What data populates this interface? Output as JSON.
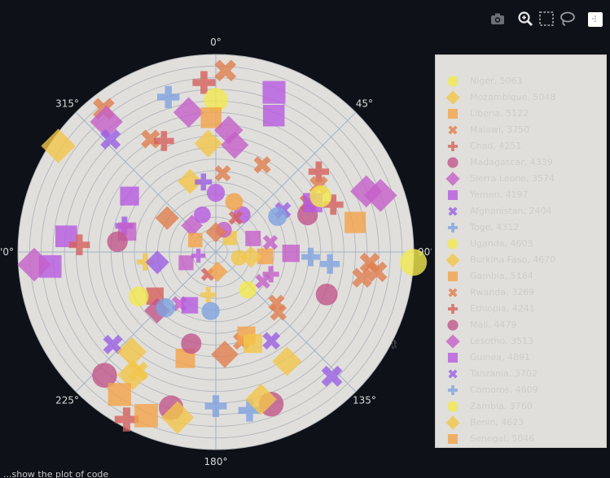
{
  "toolbar": {
    "icons": [
      "camera-icon",
      "zoom-icon",
      "box-select-icon",
      "lasso-icon",
      "autoscale-icon"
    ]
  },
  "chart_data": {
    "type": "scatter",
    "subtype": "polar",
    "theta_ticks": [
      "0°",
      "45°",
      "90°",
      "135°",
      "180°",
      "225°",
      "'0°",
      "315°"
    ],
    "radial_axis_label": "es",
    "radial_gridlines": 17,
    "grid": true,
    "legend_position": "right",
    "legend": [
      {
        "label": "Niger, 5063",
        "symbol": "circle",
        "color": "#f1e94f"
      },
      {
        "label": "Mozambique, 5048",
        "symbol": "diamond",
        "color": "#f3c54a"
      },
      {
        "label": "Liberia, 5122",
        "symbol": "square",
        "color": "#f2a24a"
      },
      {
        "label": "Malawi, 3750",
        "symbol": "x",
        "color": "#e07e4f"
      },
      {
        "label": "Chad, 4251",
        "symbol": "cross",
        "color": "#d5605d"
      },
      {
        "label": "Madagascar, 4339",
        "symbol": "circle",
        "color": "#c0568a"
      },
      {
        "label": "Sierra Leone, 3574",
        "symbol": "diamond",
        "color": "#c45fc9"
      },
      {
        "label": "Yemen, 4197",
        "symbol": "square",
        "color": "#b65ae0"
      },
      {
        "label": "Afghanistan, 2404",
        "symbol": "x",
        "color": "#9a5fe3"
      },
      {
        "label": "Togo, 4312",
        "symbol": "cross",
        "color": "#7fa3e0"
      },
      {
        "label": "Uganda, 4603",
        "symbol": "circle",
        "color": "#f1e94f"
      },
      {
        "label": "Burkina Faso, 4670",
        "symbol": "diamond",
        "color": "#f3c54a"
      },
      {
        "label": "Gambia, 5164",
        "symbol": "square",
        "color": "#f2a24a"
      },
      {
        "label": "Rwanda, 3269",
        "symbol": "x",
        "color": "#e07e4f"
      },
      {
        "label": "Ethiopia, 4241",
        "symbol": "cross",
        "color": "#d5605d"
      },
      {
        "label": "Mali, 4479",
        "symbol": "circle",
        "color": "#c0568a"
      },
      {
        "label": "Lesotho, 3513",
        "symbol": "diamond",
        "color": "#c45fc9"
      },
      {
        "label": "Guinea, 4891",
        "symbol": "square",
        "color": "#b65ae0"
      },
      {
        "label": "Tanzania, 3702",
        "symbol": "x",
        "color": "#9a5fe3"
      },
      {
        "label": "Comoros, 4609",
        "symbol": "cross",
        "color": "#7fa3e0"
      },
      {
        "label": "Zambia, 3760",
        "symbol": "circle",
        "color": "#f1e94f"
      },
      {
        "label": "Benin, 4623",
        "symbol": "diamond",
        "color": "#f3c54a"
      },
      {
        "label": "Senegal, 5046",
        "symbol": "square",
        "color": "#f2a24a"
      }
    ],
    "points": [
      {
        "theta": 3,
        "r": 0.92,
        "symbol": "x",
        "color": "#e07e4f"
      },
      {
        "theta": 356,
        "r": 0.86,
        "symbol": "cross",
        "color": "#d5605d"
      },
      {
        "theta": 343,
        "r": 0.82,
        "symbol": "cross",
        "color": "#7fa3e0"
      },
      {
        "theta": 0,
        "r": 0.77,
        "symbol": "circle",
        "color": "#f1e94f"
      },
      {
        "theta": 349,
        "r": 0.72,
        "symbol": "diamond",
        "color": "#c45fc9"
      },
      {
        "theta": 20,
        "r": 0.86,
        "symbol": "square",
        "color": "#b65ae0"
      },
      {
        "theta": 23,
        "r": 0.75,
        "symbol": "square",
        "color": "#b65ae0"
      },
      {
        "theta": 322,
        "r": 0.92,
        "symbol": "x",
        "color": "#e07e4f"
      },
      {
        "theta": 320,
        "r": 0.86,
        "symbol": "diamond",
        "color": "#c45fc9"
      },
      {
        "theta": 317,
        "r": 0.78,
        "symbol": "x",
        "color": "#9a5fe3"
      },
      {
        "theta": 304,
        "r": 0.96,
        "symbol": "diamond",
        "color": "#f3c54a"
      },
      {
        "theta": 358,
        "r": 0.68,
        "symbol": "square",
        "color": "#f2a24a"
      },
      {
        "theta": 6,
        "r": 0.62,
        "symbol": "diamond",
        "color": "#c45fc9"
      },
      {
        "theta": 356,
        "r": 0.55,
        "symbol": "diamond",
        "color": "#f3c54a"
      },
      {
        "theta": 330,
        "r": 0.66,
        "symbol": "x",
        "color": "#e07e4f"
      },
      {
        "theta": 335,
        "r": 0.62,
        "symbol": "cross",
        "color": "#d5605d"
      },
      {
        "theta": 10,
        "r": 0.55,
        "symbol": "diamond",
        "color": "#c45fc9"
      },
      {
        "theta": 28,
        "r": 0.5,
        "symbol": "x",
        "color": "#e07e4f"
      },
      {
        "theta": 52,
        "r": 0.66,
        "symbol": "cross",
        "color": "#d5605d"
      },
      {
        "theta": 303,
        "r": 0.52,
        "symbol": "square",
        "color": "#b65ae0"
      },
      {
        "theta": 340,
        "r": 0.38,
        "symbol": "diamond",
        "color": "#f3c54a"
      },
      {
        "theta": 350,
        "r": 0.36,
        "symbol": "cross",
        "color": "#9a5fe3"
      },
      {
        "theta": 5,
        "r": 0.4,
        "symbol": "x",
        "color": "#e07e4f"
      },
      {
        "theta": 0,
        "r": 0.3,
        "symbol": "circle",
        "color": "#b65ae0"
      },
      {
        "theta": 58,
        "r": 0.4,
        "symbol": "x",
        "color": "#9a5fe3"
      },
      {
        "theta": 62,
        "r": 0.53,
        "symbol": "x",
        "color": "#d5605d"
      },
      {
        "theta": 57,
        "r": 0.62,
        "symbol": "x",
        "color": "#e07e4f"
      },
      {
        "theta": 68,
        "r": 0.5,
        "symbol": "circle",
        "color": "#c0568a"
      },
      {
        "theta": 63,
        "r": 0.55,
        "symbol": "square",
        "color": "#b65ae0"
      },
      {
        "theta": 68,
        "r": 0.64,
        "symbol": "cross",
        "color": "#d5605d"
      },
      {
        "theta": 68,
        "r": 0.82,
        "symbol": "diamond",
        "color": "#c45fc9"
      },
      {
        "theta": 62,
        "r": 0.6,
        "symbol": "circle",
        "color": "#f1e94f"
      },
      {
        "theta": 286,
        "r": 0.48,
        "symbol": "cross",
        "color": "#9a5fe3"
      },
      {
        "theta": 283,
        "r": 0.46,
        "symbol": "square",
        "color": "#c45fc9"
      },
      {
        "theta": 276,
        "r": 0.76,
        "symbol": "square",
        "color": "#b65ae0"
      },
      {
        "theta": 273,
        "r": 0.69,
        "symbol": "cross",
        "color": "#d5605d"
      },
      {
        "theta": 276,
        "r": 0.5,
        "symbol": "circle",
        "color": "#c0568a"
      },
      {
        "theta": 305,
        "r": 0.3,
        "symbol": "diamond",
        "color": "#e07e4f"
      },
      {
        "theta": 318,
        "r": 0.18,
        "symbol": "diamond",
        "color": "#c45fc9"
      },
      {
        "theta": 340,
        "r": 0.2,
        "symbol": "circle",
        "color": "#b65ae0"
      },
      {
        "theta": 35,
        "r": 0.23,
        "symbol": "circle",
        "color": "#b65ae0"
      },
      {
        "theta": 60,
        "r": 0.36,
        "symbol": "circle",
        "color": "#7fa3e0"
      },
      {
        "theta": 78,
        "r": 0.72,
        "symbol": "square",
        "color": "#f2a24a"
      },
      {
        "theta": 71,
        "r": 0.88,
        "symbol": "diamond",
        "color": "#c45fc9"
      },
      {
        "theta": 30,
        "r": 0.2,
        "symbol": "x",
        "color": "#d5605d"
      },
      {
        "theta": 20,
        "r": 0.27,
        "symbol": "circle",
        "color": "#f2a24a"
      },
      {
        "theta": 265,
        "r": 0.84,
        "symbol": "square",
        "color": "#b65ae0"
      },
      {
        "theta": 266,
        "r": 0.92,
        "symbol": "diamond",
        "color": "#c45fc9"
      },
      {
        "theta": 262,
        "r": 0.36,
        "symbol": "cross",
        "color": "#f3c54a"
      },
      {
        "theta": 260,
        "r": 0.3,
        "symbol": "diamond",
        "color": "#9a5fe3"
      },
      {
        "theta": 234,
        "r": 0.38,
        "symbol": "square",
        "color": "#d5605d"
      },
      {
        "theta": 215,
        "r": 0.32,
        "symbol": "x",
        "color": "#c45fc9"
      },
      {
        "theta": 225,
        "r": 0.42,
        "symbol": "diamond",
        "color": "#c0568a"
      },
      {
        "theta": 222,
        "r": 0.38,
        "symbol": "circle",
        "color": "#7fa3e0"
      },
      {
        "theta": 240,
        "r": 0.45,
        "symbol": "circle",
        "color": "#f1e94f"
      },
      {
        "theta": 228,
        "r": 0.7,
        "symbol": "x",
        "color": "#9a5fe3"
      },
      {
        "theta": 220,
        "r": 0.66,
        "symbol": "diamond",
        "color": "#f3c54a"
      },
      {
        "theta": 214,
        "r": 0.75,
        "symbol": "diamond",
        "color": "#f3c54a"
      },
      {
        "theta": 213,
        "r": 0.72,
        "symbol": "x",
        "color": "#f3c54a"
      },
      {
        "theta": 222,
        "r": 0.84,
        "symbol": "circle",
        "color": "#c0568a"
      },
      {
        "theta": 214,
        "r": 0.87,
        "symbol": "square",
        "color": "#f2a24a"
      },
      {
        "theta": 208,
        "r": 0.96,
        "symbol": "cross",
        "color": "#d5605d"
      },
      {
        "theta": 203,
        "r": 0.9,
        "symbol": "square",
        "color": "#f2a24a"
      },
      {
        "theta": 196,
        "r": 0.82,
        "symbol": "circle",
        "color": "#c0568a"
      },
      {
        "theta": 193,
        "r": 0.86,
        "symbol": "diamond",
        "color": "#f3c54a"
      },
      {
        "theta": 168,
        "r": 0.82,
        "symbol": "cross",
        "color": "#7fa3e0"
      },
      {
        "theta": 160,
        "r": 0.82,
        "symbol": "circle",
        "color": "#c0568a"
      },
      {
        "theta": 163,
        "r": 0.78,
        "symbol": "diamond",
        "color": "#f3c54a"
      },
      {
        "theta": 180,
        "r": 0.78,
        "symbol": "cross",
        "color": "#7fa3e0"
      },
      {
        "theta": 196,
        "r": 0.56,
        "symbol": "square",
        "color": "#f2a24a"
      },
      {
        "theta": 195,
        "r": 0.48,
        "symbol": "circle",
        "color": "#c0568a"
      },
      {
        "theta": 175,
        "r": 0.52,
        "symbol": "diamond",
        "color": "#e07e4f"
      },
      {
        "theta": 164,
        "r": 0.47,
        "symbol": "x",
        "color": "#e07e4f"
      },
      {
        "theta": 160,
        "r": 0.45,
        "symbol": "square",
        "color": "#f2a24a"
      },
      {
        "theta": 158,
        "r": 0.5,
        "symbol": "square",
        "color": "#f3c54a"
      },
      {
        "theta": 148,
        "r": 0.53,
        "symbol": "x",
        "color": "#9a5fe3"
      },
      {
        "theta": 147,
        "r": 0.66,
        "symbol": "diamond",
        "color": "#f3c54a"
      },
      {
        "theta": 137,
        "r": 0.86,
        "symbol": "x",
        "color": "#9a5fe3"
      },
      {
        "theta": 130,
        "r": 0.4,
        "symbol": "x",
        "color": "#e07e4f"
      },
      {
        "theta": 134,
        "r": 0.44,
        "symbol": "x",
        "color": "#e07e4f"
      },
      {
        "theta": 122,
        "r": 0.28,
        "symbol": "x",
        "color": "#c45fc9"
      },
      {
        "theta": 140,
        "r": 0.25,
        "symbol": "circle",
        "color": "#f1e94f"
      },
      {
        "theta": 111,
        "r": 0.6,
        "symbol": "circle",
        "color": "#c0568a"
      },
      {
        "theta": 100,
        "r": 0.75,
        "symbol": "x",
        "color": "#e07e4f"
      },
      {
        "theta": 97,
        "r": 0.82,
        "symbol": "x",
        "color": "#e07e4f"
      },
      {
        "theta": 94,
        "r": 0.78,
        "symbol": "x",
        "color": "#e07e4f"
      },
      {
        "theta": 93,
        "r": 1.0,
        "symbol": "circle",
        "color": "#f1e94f"
      },
      {
        "theta": 96,
        "r": 0.58,
        "symbol": "cross",
        "color": "#7fa3e0"
      },
      {
        "theta": 93,
        "r": 0.48,
        "symbol": "cross",
        "color": "#7fa3e0"
      },
      {
        "theta": 91,
        "r": 0.38,
        "symbol": "square",
        "color": "#c45fc9"
      },
      {
        "theta": 95,
        "r": 0.25,
        "symbol": "square",
        "color": "#f2a24a"
      },
      {
        "theta": 98,
        "r": 0.18,
        "symbol": "diamond",
        "color": "#f3c54a"
      },
      {
        "theta": 104,
        "r": 0.12,
        "symbol": "circle",
        "color": "#f3c54a"
      },
      {
        "theta": 112,
        "r": 0.3,
        "symbol": "cross",
        "color": "#c45fc9"
      },
      {
        "theta": 206,
        "r": 0.3,
        "symbol": "square",
        "color": "#b65ae0"
      },
      {
        "theta": 190,
        "r": 0.22,
        "symbol": "cross",
        "color": "#f3c54a"
      },
      {
        "theta": 185,
        "r": 0.3,
        "symbol": "circle",
        "color": "#7fa3e0"
      },
      {
        "theta": 258,
        "r": 0.09,
        "symbol": "cross",
        "color": "#b65ae0"
      },
      {
        "theta": 250,
        "r": 0.16,
        "symbol": "square",
        "color": "#c45fc9"
      },
      {
        "theta": 200,
        "r": 0.12,
        "symbol": "x",
        "color": "#d5605d"
      },
      {
        "theta": 175,
        "r": 0.1,
        "symbol": "diamond",
        "color": "#f2a24a"
      },
      {
        "theta": 45,
        "r": 0.1,
        "symbol": "square",
        "color": "#f3c54a"
      },
      {
        "theta": 20,
        "r": 0.12,
        "symbol": "circle",
        "color": "#c45fc9"
      },
      {
        "theta": 0,
        "r": 0.1,
        "symbol": "diamond",
        "color": "#e07e4f"
      },
      {
        "theta": 300,
        "r": 0.12,
        "symbol": "square",
        "color": "#f2a24a"
      },
      {
        "theta": 70,
        "r": 0.2,
        "symbol": "square",
        "color": "#c45fc9"
      },
      {
        "theta": 80,
        "r": 0.28,
        "symbol": "x",
        "color": "#c45fc9"
      }
    ]
  },
  "status_text": "...show the plot of code"
}
